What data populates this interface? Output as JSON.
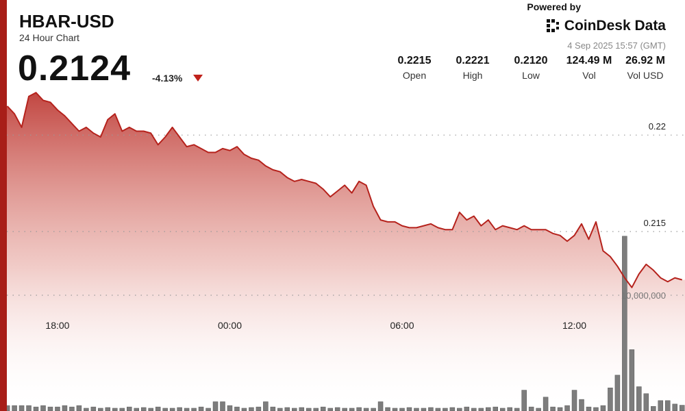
{
  "header": {
    "symbol": "HBAR-USD",
    "period": "24 Hour Chart",
    "price": "0.2124",
    "change": "-4.13%",
    "powered_by": "Powered by",
    "brand": "CoinDesk Data",
    "timestamp": "4 Sep 2025 15:57 (GMT)",
    "stats": [
      {
        "value": "0.2215",
        "label": "Open"
      },
      {
        "value": "0.2221",
        "label": "High"
      },
      {
        "value": "0.2120",
        "label": "Low"
      },
      {
        "value": "124.49 M",
        "label": "Vol"
      },
      {
        "value": "26.92 M",
        "label": "Vol USD"
      }
    ]
  },
  "chart_data": {
    "type": "line",
    "categories": [
      null,
      null,
      null,
      null,
      null,
      null,
      null,
      "18:00",
      null,
      null,
      null,
      null,
      null,
      null,
      null,
      null,
      null,
      null,
      null,
      null,
      null,
      null,
      null,
      null,
      null,
      null,
      null,
      null,
      null,
      null,
      null,
      "00:00",
      null,
      null,
      null,
      null,
      null,
      null,
      null,
      null,
      null,
      null,
      null,
      null,
      null,
      null,
      null,
      null,
      null,
      null,
      null,
      null,
      null,
      null,
      null,
      "06:00",
      null,
      null,
      null,
      null,
      null,
      null,
      null,
      null,
      null,
      null,
      null,
      null,
      null,
      null,
      null,
      null,
      null,
      null,
      null,
      null,
      null,
      null,
      null,
      "12:00",
      null,
      null,
      null,
      null,
      null,
      null,
      null,
      null,
      null,
      null,
      null,
      null,
      null,
      null,
      null
    ],
    "series": [
      {
        "type": "line",
        "color": "#b5221c",
        "values": [
          0.2215,
          0.2211,
          0.2204,
          0.222,
          0.2222,
          0.2218,
          0.2217,
          0.2213,
          0.221,
          0.2206,
          0.2202,
          0.2204,
          0.2201,
          0.2199,
          0.2208,
          0.2211,
          0.2202,
          0.2204,
          0.2202,
          0.2202,
          0.2201,
          0.2195,
          0.2199,
          0.2204,
          0.2199,
          0.2194,
          0.2195,
          0.2193,
          0.2191,
          0.2191,
          0.2193,
          0.2192,
          0.2194,
          0.219,
          0.2188,
          0.2187,
          0.2184,
          0.2182,
          0.2181,
          0.2178,
          0.2176,
          0.2177,
          0.2176,
          0.2175,
          0.2172,
          0.2168,
          0.2171,
          0.2174,
          0.217,
          0.2176,
          0.2174,
          0.2163,
          0.2156,
          0.2155,
          0.2155,
          0.2153,
          0.2152,
          0.2152,
          0.2153,
          0.2154,
          0.2152,
          0.2151,
          0.2151,
          0.216,
          0.2156,
          0.2158,
          0.2153,
          0.2156,
          0.2151,
          0.2153,
          0.2152,
          0.2151,
          0.2153,
          0.2151,
          0.2151,
          0.2151,
          0.2149,
          0.2148,
          0.2145,
          0.2148,
          0.2154,
          0.2146,
          0.2155,
          0.214,
          0.2137,
          0.2132,
          0.2126,
          0.2121,
          0.2128,
          0.2133,
          0.213,
          0.2126,
          0.2124,
          0.2126,
          0.2125
        ]
      },
      {
        "type": "bar",
        "axis": "y2",
        "color": "#7d7d7d",
        "values": [
          470000,
          470000,
          470000,
          470000,
          350000,
          470000,
          350000,
          350000,
          470000,
          350000,
          470000,
          240000,
          350000,
          240000,
          300000,
          240000,
          240000,
          350000,
          240000,
          300000,
          240000,
          350000,
          240000,
          240000,
          300000,
          240000,
          240000,
          350000,
          240000,
          800000,
          800000,
          470000,
          350000,
          240000,
          300000,
          350000,
          800000,
          350000,
          240000,
          300000,
          240000,
          300000,
          240000,
          240000,
          350000,
          240000,
          300000,
          240000,
          240000,
          300000,
          240000,
          240000,
          800000,
          300000,
          240000,
          240000,
          300000,
          240000,
          240000,
          300000,
          240000,
          240000,
          300000,
          240000,
          350000,
          240000,
          240000,
          300000,
          350000,
          240000,
          300000,
          240000,
          1800000,
          350000,
          240000,
          1200000,
          350000,
          300000,
          470000,
          1800000,
          1000000,
          350000,
          300000,
          470000,
          2000000,
          3100000,
          15100000,
          5300000,
          2100000,
          1500000,
          400000,
          900000,
          900000,
          600000,
          500000
        ]
      }
    ],
    "ylim": [
      0.2057,
      0.227
    ],
    "yticks": [
      0.22,
      0.215
    ],
    "y2lim": [
      0,
      35500000
    ],
    "y2ticks": [
      {
        "value": 10000000,
        "label": "10,000,000"
      }
    ],
    "grid": true
  }
}
